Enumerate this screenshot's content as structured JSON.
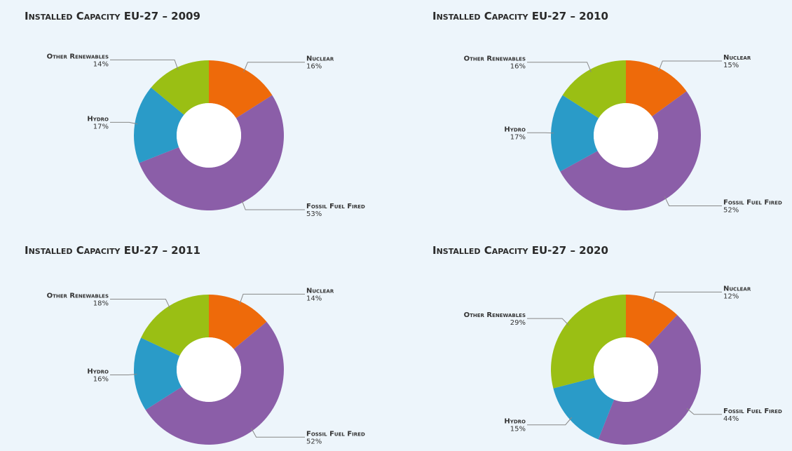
{
  "chart_data": [
    {
      "type": "donut",
      "title": "Installed Capacity EU-27 – 2009",
      "categories": [
        "Nuclear",
        "Fossil Fuel Fired",
        "Hydro",
        "Other Renewables"
      ],
      "values": [
        16,
        53,
        17,
        14
      ],
      "value_labels": [
        "16%",
        "53%",
        "17%",
        "14%"
      ],
      "colors": [
        "#ee6a0a",
        "#8b5ea8",
        "#2a9bc8",
        "#9abf14"
      ]
    },
    {
      "type": "donut",
      "title": "Installed Capacity EU-27 – 2010",
      "categories": [
        "Nuclear",
        "Fossil Fuel Fired",
        "Hydro",
        "Other Renewables"
      ],
      "values": [
        15,
        52,
        17,
        16
      ],
      "value_labels": [
        "15%",
        "52%",
        "17%",
        "16%"
      ],
      "colors": [
        "#ee6a0a",
        "#8b5ea8",
        "#2a9bc8",
        "#9abf14"
      ]
    },
    {
      "type": "donut",
      "title": "Installed Capacity EU-27 – 2011",
      "categories": [
        "Nuclear",
        "Fossil Fuel Fired",
        "Hydro",
        "Other Renewables"
      ],
      "values": [
        14,
        52,
        16,
        18
      ],
      "value_labels": [
        "14%",
        "52%",
        "16%",
        "18%"
      ],
      "colors": [
        "#ee6a0a",
        "#8b5ea8",
        "#2a9bc8",
        "#9abf14"
      ]
    },
    {
      "type": "donut",
      "title": "Installed Capacity EU-27 – 2020",
      "categories": [
        "Nuclear",
        "Fossil Fuel Fired",
        "Hydro",
        "Other Renewables"
      ],
      "values": [
        12,
        44,
        15,
        29
      ],
      "value_labels": [
        "12%",
        "44%",
        "15%",
        "29%"
      ],
      "colors": [
        "#ee6a0a",
        "#8b5ea8",
        "#2a9bc8",
        "#9abf14"
      ]
    }
  ]
}
